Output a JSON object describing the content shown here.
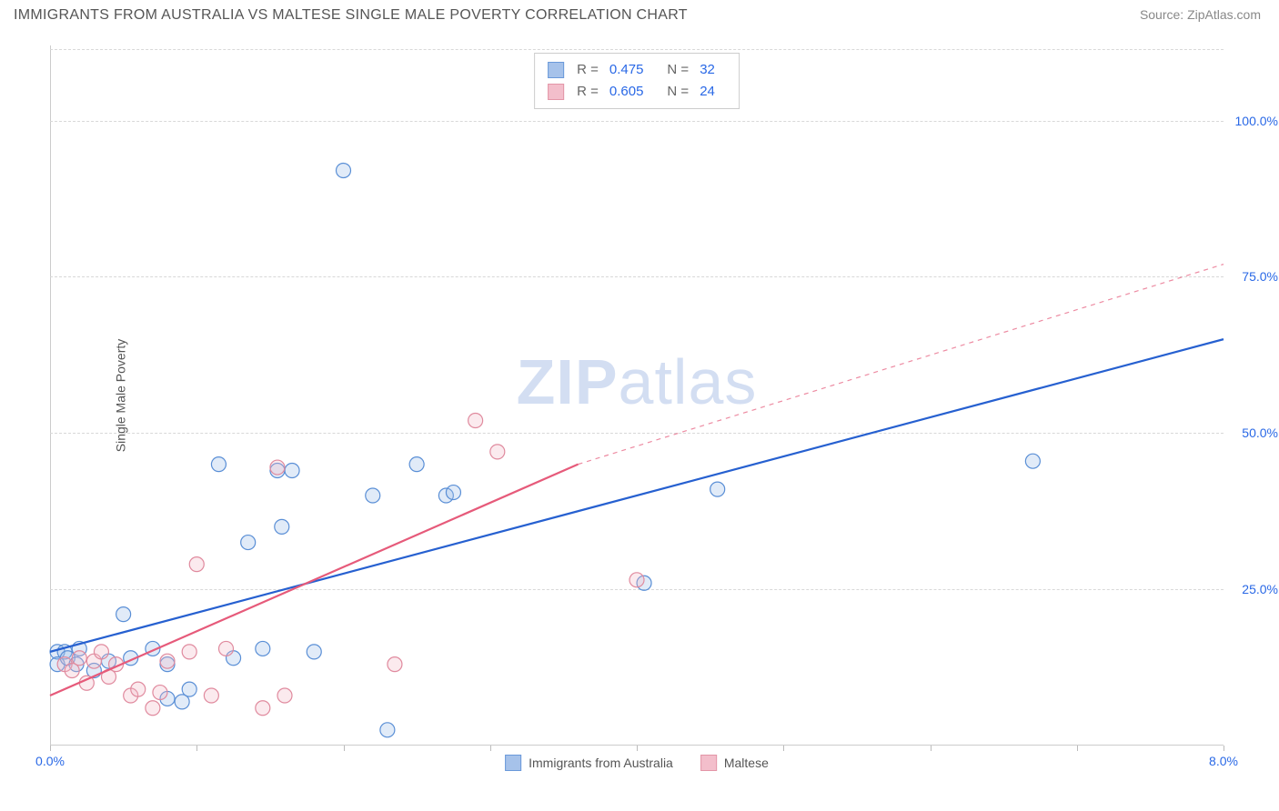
{
  "header": {
    "title": "IMMIGRANTS FROM AUSTRALIA VS MALTESE SINGLE MALE POVERTY CORRELATION CHART",
    "source": "Source: ZipAtlas.com"
  },
  "watermark": {
    "zip": "ZIP",
    "atlas": "atlas"
  },
  "y_axis": {
    "label": "Single Male Poverty"
  },
  "chart": {
    "type": "scatter",
    "background_color": "#ffffff",
    "grid_color": "#d8d8d8",
    "grid_dash": "4,4",
    "xlim": [
      0.0,
      8.0
    ],
    "ylim": [
      0.0,
      112.0
    ],
    "x_ticks": [
      0.0,
      1.0,
      2.0,
      3.0,
      4.0,
      5.0,
      6.0,
      7.0,
      8.0
    ],
    "x_tick_labels": {
      "0": "0.0%",
      "8": "8.0%"
    },
    "y_ticks": [
      25.0,
      50.0,
      75.0,
      100.0
    ],
    "y_tick_labels": [
      "25.0%",
      "50.0%",
      "75.0%",
      "100.0%"
    ],
    "tick_label_color": "#2968e6",
    "tick_label_fontsize": 14,
    "marker_radius": 8,
    "marker_stroke_width": 1.2,
    "marker_fill_opacity": 0.3,
    "regression_line_width": 2.2,
    "series": [
      {
        "name": "Immigrants from Australia",
        "color_stroke": "#5a8fd6",
        "color_fill": "#9dbce8",
        "line_color": "#2660d0",
        "r": 0.475,
        "n": 32,
        "regression": {
          "solid": {
            "x1": 0.0,
            "y1": 15.0,
            "x2": 8.0,
            "y2": 65.0
          }
        },
        "points": [
          [
            0.05,
            15.0
          ],
          [
            0.05,
            13.0
          ],
          [
            0.1,
            15.0
          ],
          [
            0.12,
            14.0
          ],
          [
            0.18,
            13.0
          ],
          [
            0.2,
            15.5
          ],
          [
            0.5,
            21.0
          ],
          [
            0.55,
            14.0
          ],
          [
            0.8,
            13.0
          ],
          [
            0.8,
            7.5
          ],
          [
            0.9,
            7.0
          ],
          [
            1.15,
            45.0
          ],
          [
            1.25,
            14.0
          ],
          [
            1.35,
            32.5
          ],
          [
            1.55,
            44.0
          ],
          [
            1.58,
            35.0
          ],
          [
            1.65,
            44.0
          ],
          [
            1.8,
            15.0
          ],
          [
            2.0,
            92.0
          ],
          [
            2.2,
            40.0
          ],
          [
            2.3,
            2.5
          ],
          [
            2.5,
            45.0
          ],
          [
            2.7,
            40.0
          ],
          [
            2.75,
            40.5
          ],
          [
            4.55,
            41.0
          ],
          [
            4.05,
            26.0
          ],
          [
            6.7,
            45.5
          ],
          [
            0.3,
            12.0
          ],
          [
            0.4,
            13.5
          ],
          [
            0.7,
            15.5
          ],
          [
            0.95,
            9.0
          ],
          [
            1.45,
            15.5
          ]
        ]
      },
      {
        "name": "Maltese",
        "color_stroke": "#e08a9e",
        "color_fill": "#f2b8c6",
        "line_color": "#e65a7a",
        "r": 0.605,
        "n": 24,
        "regression": {
          "solid": {
            "x1": 0.0,
            "y1": 8.0,
            "x2": 3.6,
            "y2": 45.0
          },
          "dashed": {
            "x1": 3.6,
            "y1": 45.0,
            "x2": 8.0,
            "y2": 77.0
          }
        },
        "points": [
          [
            0.1,
            13.0
          ],
          [
            0.15,
            12.0
          ],
          [
            0.2,
            14.0
          ],
          [
            0.25,
            10.0
          ],
          [
            0.3,
            13.5
          ],
          [
            0.35,
            15.0
          ],
          [
            0.4,
            11.0
          ],
          [
            0.45,
            13.0
          ],
          [
            0.55,
            8.0
          ],
          [
            0.6,
            9.0
          ],
          [
            0.7,
            6.0
          ],
          [
            0.75,
            8.5
          ],
          [
            0.8,
            13.5
          ],
          [
            0.95,
            15.0
          ],
          [
            1.0,
            29.0
          ],
          [
            1.1,
            8.0
          ],
          [
            1.2,
            15.5
          ],
          [
            1.45,
            6.0
          ],
          [
            1.55,
            44.5
          ],
          [
            1.6,
            8.0
          ],
          [
            2.35,
            13.0
          ],
          [
            2.9,
            52.0
          ],
          [
            3.05,
            47.0
          ],
          [
            4.0,
            26.5
          ]
        ]
      }
    ]
  },
  "stats_legend": {
    "r_label": "R =",
    "n_label": "N ="
  },
  "bottom_legend": {
    "items": [
      "Immigrants from Australia",
      "Maltese"
    ]
  }
}
